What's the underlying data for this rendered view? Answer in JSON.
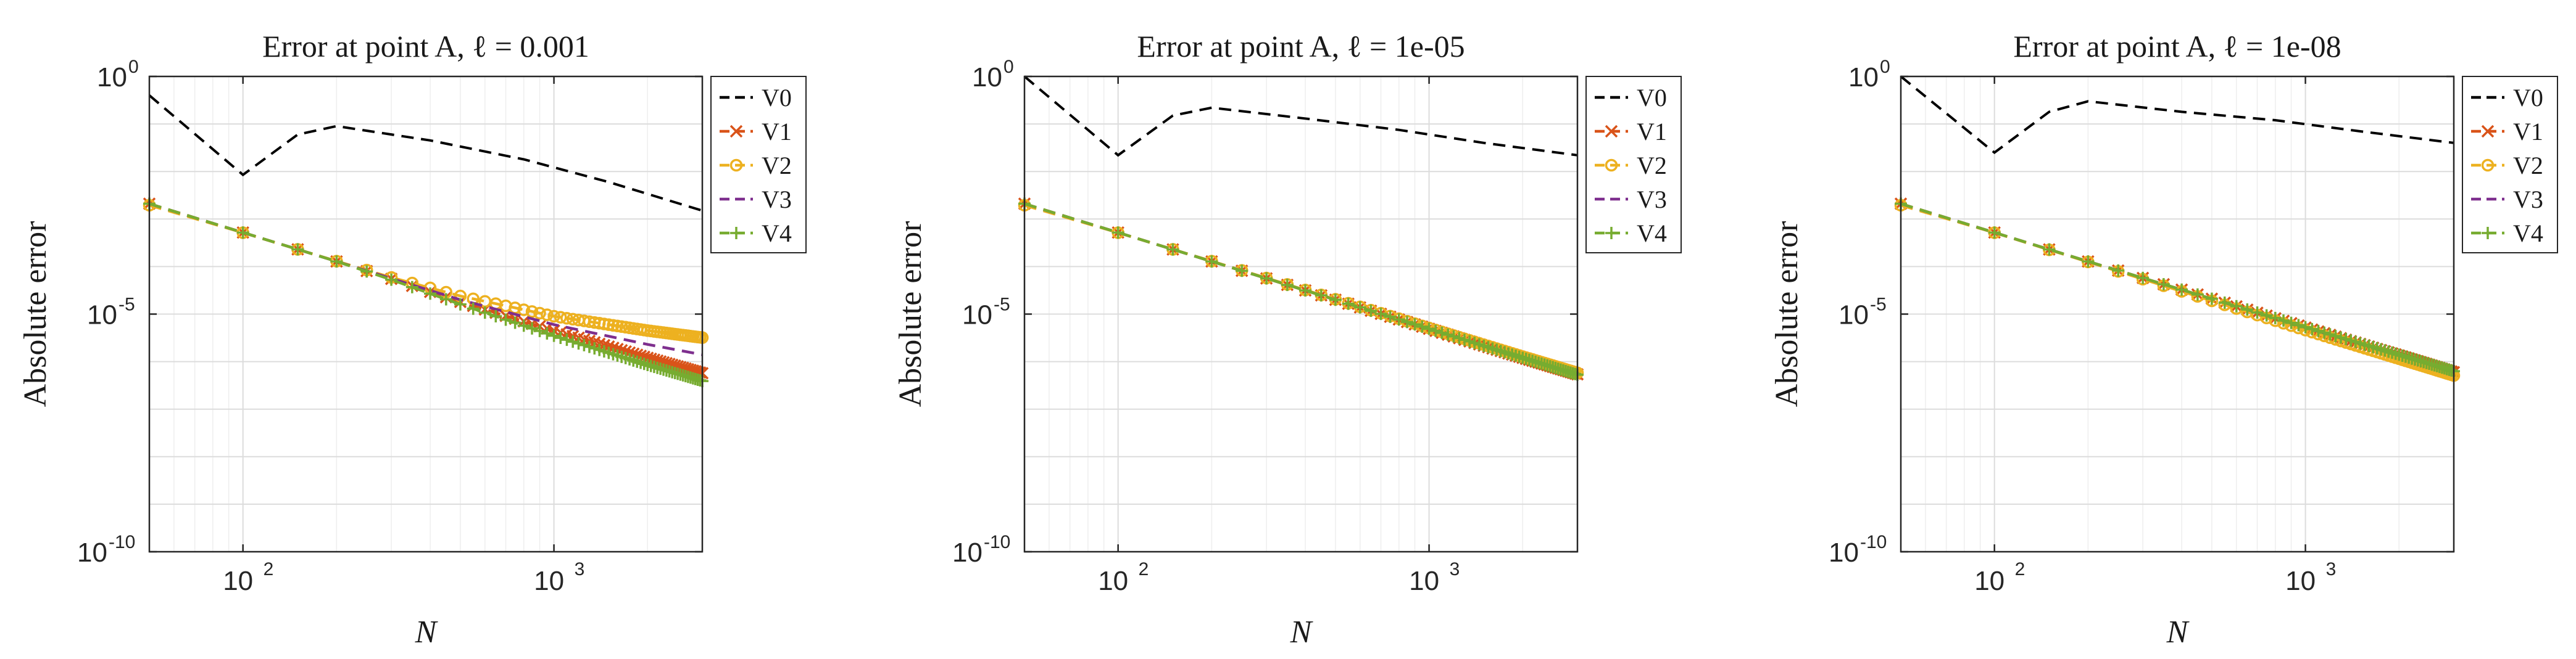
{
  "colors": {
    "V0": "#000000",
    "V1": "#D95319",
    "V2": "#EDB120",
    "V3": "#7E2F8E",
    "V4": "#77AC30",
    "grid": "#dcdcdc",
    "minor_grid": "#eeeeee"
  },
  "chart_data": [
    {
      "type": "line",
      "title": "Error at point A, ℓ = 0.001",
      "xlabel": "N",
      "ylabel": "Absolute error",
      "xscale": "log",
      "yscale": "log",
      "xlim": [
        50,
        3000
      ],
      "ylim": [
        1e-10,
        1
      ],
      "grid": true,
      "legend_position": "outside-top-right",
      "xticks": [
        {
          "base": "10",
          "exp": "2",
          "value": 100
        },
        {
          "base": "10",
          "exp": "3",
          "value": 1000
        }
      ],
      "yticks": [
        {
          "base": "10",
          "exp": "0",
          "value": 1
        },
        {
          "base": "10",
          "exp": "-5",
          "value": 1e-05
        },
        {
          "base": "10",
          "exp": "-10",
          "value": 1e-10
        }
      ],
      "series": [
        {
          "name": "V0",
          "style": "dashed",
          "marker": "none",
          "x": [
            50,
            100,
            150,
            200,
            400,
            800,
            1500,
            3000
          ],
          "y": [
            0.4,
            0.0085,
            0.06,
            0.09,
            0.045,
            0.018,
            0.006,
            0.0015
          ]
        },
        {
          "name": "V1",
          "style": "dashed",
          "marker": "x",
          "x": [
            50,
            100,
            150,
            200,
            300,
            500,
            1000,
            2000,
            3000
          ],
          "y": [
            0.0021,
            0.00052,
            0.00023,
            0.000128,
            5.5e-05,
            1.8e-05,
            4.5e-06,
            1.2e-06,
            5.7e-07
          ]
        },
        {
          "name": "V2",
          "style": "dashed",
          "marker": "o",
          "x": [
            50,
            100,
            150,
            200,
            300,
            500,
            1000,
            2000,
            3000
          ],
          "y": [
            0.00195,
            0.000515,
            0.00023,
            0.00013,
            5.9e-05,
            2.4e-05,
            9e-06,
            4.5e-06,
            3.2e-06
          ]
        },
        {
          "name": "V3",
          "style": "dashed",
          "marker": "none",
          "x": [
            50,
            100,
            150,
            200,
            300,
            500,
            1000,
            2000,
            3000
          ],
          "y": [
            0.0021,
            0.00052,
            0.00023,
            0.000128,
            5.6e-05,
            2e-05,
            6e-06,
            2.3e-06,
            1.4e-06
          ]
        },
        {
          "name": "V4",
          "style": "dashed",
          "marker": "+",
          "x": [
            50,
            100,
            150,
            200,
            300,
            500,
            1000,
            2000,
            3000
          ],
          "y": [
            0.0021,
            0.00052,
            0.00023,
            0.000128,
            5.3e-05,
            1.6e-05,
            3.5e-06,
            8.5e-07,
            3.9e-07
          ]
        }
      ]
    },
    {
      "type": "line",
      "title": "Error at point A, ℓ = 1e-05",
      "xlabel": "N",
      "ylabel": "Absolute error",
      "xscale": "log",
      "yscale": "log",
      "xlim": [
        50,
        3000
      ],
      "ylim": [
        1e-10,
        1
      ],
      "grid": true,
      "legend_position": "outside-top-right",
      "xticks": [
        {
          "base": "10",
          "exp": "2",
          "value": 100
        },
        {
          "base": "10",
          "exp": "3",
          "value": 1000
        }
      ],
      "yticks": [
        {
          "base": "10",
          "exp": "0",
          "value": 1
        },
        {
          "base": "10",
          "exp": "-5",
          "value": 1e-05
        },
        {
          "base": "10",
          "exp": "-10",
          "value": 1e-10
        }
      ],
      "series": [
        {
          "name": "V0",
          "style": "dashed",
          "marker": "none",
          "x": [
            50,
            100,
            150,
            200,
            400,
            800,
            1500,
            3000
          ],
          "y": [
            1.0,
            0.022,
            0.15,
            0.22,
            0.13,
            0.075,
            0.04,
            0.022
          ]
        },
        {
          "name": "V1",
          "style": "dashed",
          "marker": "x",
          "x": [
            50,
            100,
            200,
            500,
            1000,
            2000,
            3000
          ],
          "y": [
            0.0021,
            0.00052,
            0.000128,
            2e-05,
            4.9e-06,
            1.2e-06,
            5.4e-07
          ]
        },
        {
          "name": "V2",
          "style": "dashed",
          "marker": "o",
          "x": [
            50,
            100,
            200,
            500,
            1000,
            2000,
            3000
          ],
          "y": [
            0.00195,
            0.000515,
            0.00013,
            2.05e-05,
            5.1e-06,
            1.28e-06,
            5.8e-07
          ]
        },
        {
          "name": "V3",
          "style": "dashed",
          "marker": "none",
          "x": [
            50,
            100,
            200,
            500,
            1000,
            2000,
            3000
          ],
          "y": [
            0.0021,
            0.00052,
            0.000128,
            2e-05,
            4.9e-06,
            1.2e-06,
            5.4e-07
          ]
        },
        {
          "name": "V4",
          "style": "dashed",
          "marker": "+",
          "x": [
            50,
            100,
            200,
            500,
            1000,
            2000,
            3000
          ],
          "y": [
            0.0021,
            0.00052,
            0.000128,
            2e-05,
            4.9e-06,
            1.2e-06,
            5.3e-07
          ]
        }
      ]
    },
    {
      "type": "line",
      "title": "Error at point A, ℓ = 1e-08",
      "xlabel": "N",
      "ylabel": "Absolute error",
      "xscale": "log",
      "yscale": "log",
      "xlim": [
        50,
        3000
      ],
      "ylim": [
        1e-10,
        1
      ],
      "grid": true,
      "legend_position": "outside-top-right",
      "xticks": [
        {
          "base": "10",
          "exp": "2",
          "value": 100
        },
        {
          "base": "10",
          "exp": "3",
          "value": 1000
        }
      ],
      "yticks": [
        {
          "base": "10",
          "exp": "0",
          "value": 1
        },
        {
          "base": "10",
          "exp": "-5",
          "value": 1e-05
        },
        {
          "base": "10",
          "exp": "-10",
          "value": 1e-10
        }
      ],
      "series": [
        {
          "name": "V0",
          "style": "dashed",
          "marker": "none",
          "x": [
            50,
            100,
            150,
            200,
            400,
            800,
            1500,
            3000
          ],
          "y": [
            1.0,
            0.025,
            0.18,
            0.3,
            0.18,
            0.12,
            0.07,
            0.04
          ]
        },
        {
          "name": "V1",
          "style": "dashed",
          "marker": "x",
          "x": [
            50,
            100,
            200,
            500,
            1000,
            2000,
            3000
          ],
          "y": [
            0.0021,
            0.00052,
            0.000128,
            2.1e-05,
            5.2e-06,
            1.35e-06,
            6e-07
          ]
        },
        {
          "name": "V2",
          "style": "dashed",
          "marker": "o",
          "x": [
            50,
            100,
            200,
            500,
            1000,
            2000,
            3000
          ],
          "y": [
            0.00195,
            0.000515,
            0.000125,
            1.9e-05,
            4.6e-06,
            1.15e-06,
            5.1e-07
          ]
        },
        {
          "name": "V3",
          "style": "dashed",
          "marker": "none",
          "x": [
            50,
            100,
            200,
            500,
            1000,
            2000,
            3000
          ],
          "y": [
            0.0021,
            0.00052,
            0.000128,
            2.1e-05,
            5.2e-06,
            1.35e-06,
            6e-07
          ]
        },
        {
          "name": "V4",
          "style": "dashed",
          "marker": "+",
          "x": [
            50,
            100,
            200,
            500,
            1000,
            2000,
            3000
          ],
          "y": [
            0.0021,
            0.00052,
            0.000128,
            2.1e-05,
            5.3e-06,
            1.4e-06,
            6.3e-07
          ]
        }
      ]
    }
  ]
}
